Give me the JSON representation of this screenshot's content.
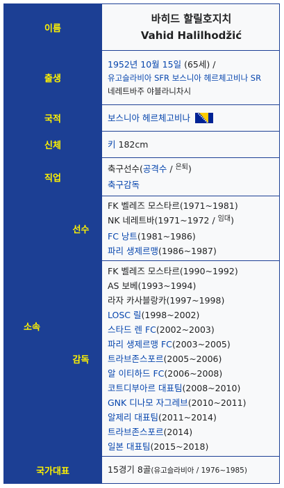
{
  "name": {
    "label": "이름",
    "korean": "바히드 할릴호지치",
    "native": "Vahid Halilhodžić"
  },
  "birth": {
    "label": "출생",
    "date": "1952년 10월 15일",
    "age": "(65세)",
    "sep": " /",
    "place1": "유고슬라비아 SFR 보스니아 헤르체고비나 SR",
    "place2": "네레트바주 야블라니차시"
  },
  "nationality": {
    "label": "국적",
    "country": "보스니아 헤르체고비나",
    "flag_icon": "bosnia-flag"
  },
  "body": {
    "label": "신체",
    "height_prefix": "키",
    "height_value": " 182cm"
  },
  "job": {
    "label": "직업",
    "line1_a": "축구선수(",
    "line1_b": "공격수",
    "line1_c": " / ",
    "line1_d": "은퇴",
    "line1_e": ")",
    "line2": "축구감독"
  },
  "club": {
    "label": "소속",
    "player": {
      "label": "선수",
      "rows": [
        {
          "club": "FK 벨레즈 모스타르",
          "years": "(1971~1981)",
          "link": false
        },
        {
          "club": "NK 네레트바",
          "years": "(1971~1972 / ",
          "extra": "임대",
          "tail": ")",
          "link": false
        },
        {
          "club": "FC 낭트",
          "years": "(1981~1986)",
          "link": true
        },
        {
          "club": "파리 생제르맹",
          "years": "(1986~1987)",
          "link": true
        }
      ]
    },
    "coach": {
      "label": "감독",
      "rows": [
        {
          "club": "FK 벨레즈 모스타르",
          "years": "(1990~1992)",
          "link": false
        },
        {
          "club": "AS 보베",
          "years": "(1993~1994)",
          "link": false
        },
        {
          "club": "라자 카사블랑카",
          "years": "(1997~1998)",
          "link": false
        },
        {
          "club": "LOSC 릴",
          "years": "(1998~2002)",
          "link": true
        },
        {
          "club": "스타드 렌 FC",
          "years": "(2002~2003)",
          "link": true
        },
        {
          "club": "파리 생제르맹 FC",
          "years": "(2003~2005)",
          "link": true
        },
        {
          "club": "트라브존스포르",
          "years": "(2005~2006)",
          "link": true
        },
        {
          "club": "알 이티하드 FC",
          "years": "(2006~2008)",
          "link": true
        },
        {
          "club": "코트디부아르 대표팀",
          "years": "(2008~2010)",
          "link": true
        },
        {
          "club": "GNK 디나모 자그레브",
          "years": "(2010~2011)",
          "link": true
        },
        {
          "club": "알제리 대표팀",
          "years": "(2011~2014)",
          "link": true
        },
        {
          "club": "트라브존스포르",
          "years": "(2014)",
          "link": true
        },
        {
          "club": "일본 대표팀",
          "years": "(2015~2018)",
          "link": true
        }
      ]
    }
  },
  "national": {
    "label": "국가대표",
    "caps": "15경기 8골",
    "team": "(유고슬라비아",
    "period": " / 1976~1985)"
  },
  "colors": {
    "header_bg": "#1c3f94",
    "header_text": "#fff200",
    "link": "#0645ad",
    "cell_bg": "#f8f9fa"
  }
}
